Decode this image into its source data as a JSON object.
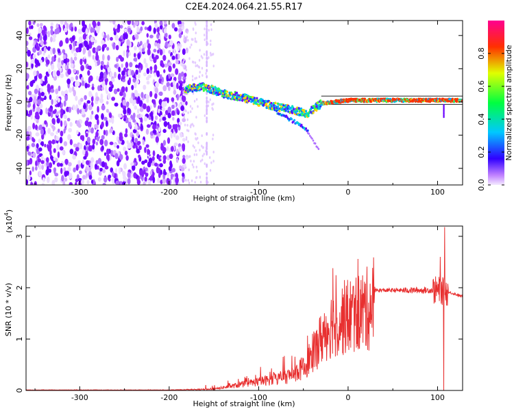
{
  "title": "C2E4.2024.064.21.55.R17",
  "chart_data": [
    {
      "type": "heatmap",
      "xlabel": "Height of straight line (km)",
      "ylabel": "Frequency (Hz)",
      "xlim": [
        -360,
        128
      ],
      "ylim": [
        -50,
        49
      ],
      "x_ticks": [
        -300,
        -200,
        -100,
        0,
        100
      ],
      "y_ticks": [
        -40,
        -20,
        0,
        20,
        40
      ],
      "colorbar": {
        "label": "Normalized spectral amplitude",
        "range": [
          0,
          1
        ],
        "ticks": [
          0.0,
          0.2,
          0.4,
          0.6,
          0.8
        ],
        "colormap": "rainbow"
      },
      "noise_region": {
        "x_range": [
          -360,
          -180
        ],
        "isolated_column_x": -158
      },
      "signal_trace": [
        {
          "x": -180,
          "y": 8
        },
        {
          "x": -160,
          "y": 9
        },
        {
          "x": -140,
          "y": 5
        },
        {
          "x": -120,
          "y": 3
        },
        {
          "x": -100,
          "y": 0
        },
        {
          "x": -80,
          "y": -3
        },
        {
          "x": -60,
          "y": -5
        },
        {
          "x": -45,
          "y": -7
        },
        {
          "x": -30,
          "y": -1
        },
        {
          "x": 0,
          "y": 1
        },
        {
          "x": 50,
          "y": 1
        },
        {
          "x": 100,
          "y": 1
        },
        {
          "x": 128,
          "y": 1
        }
      ],
      "branch_trace": [
        {
          "x": -80,
          "y": -6
        },
        {
          "x": -60,
          "y": -12
        },
        {
          "x": -45,
          "y": -17
        }
      ],
      "faint_branch_trace": [
        {
          "x": -45,
          "y": -18
        },
        {
          "x": -38,
          "y": -24
        },
        {
          "x": -32,
          "y": -30
        }
      ]
    },
    {
      "type": "line",
      "xlabel": "Height of straight line (km)",
      "ylabel": "SNR (10 * v/v)",
      "y_scale_label": "(x10",
      "y_scale_exp": "4",
      "y_scale_close": ")",
      "xlim": [
        -360,
        128
      ],
      "ylim": [
        0,
        3.2
      ],
      "x_ticks": [
        -300,
        -200,
        -100,
        0,
        100
      ],
      "y_ticks": [
        0,
        1,
        2,
        3
      ],
      "color": "#e83030",
      "envelope": [
        {
          "x": -360,
          "y": 0.01
        },
        {
          "x": -200,
          "y": 0.01
        },
        {
          "x": -150,
          "y": 0.03
        },
        {
          "x": -130,
          "y": 0.1
        },
        {
          "x": -100,
          "y": 0.2
        },
        {
          "x": -70,
          "y": 0.3
        },
        {
          "x": -50,
          "y": 0.5
        },
        {
          "x": -40,
          "y": 0.8
        },
        {
          "x": -30,
          "y": 1.2
        },
        {
          "x": -20,
          "y": 1.5
        },
        {
          "x": -10,
          "y": 1.6
        },
        {
          "x": 0,
          "y": 1.7
        },
        {
          "x": 20,
          "y": 1.85
        },
        {
          "x": 30,
          "y": 1.95
        },
        {
          "x": 50,
          "y": 1.95
        },
        {
          "x": 80,
          "y": 1.95
        },
        {
          "x": 100,
          "y": 1.95
        },
        {
          "x": 115,
          "y": 1.9
        },
        {
          "x": 128,
          "y": 1.83
        }
      ],
      "spikes": [
        {
          "x": -17,
          "y": 2.38
        },
        {
          "x": -10,
          "y": 1.25
        },
        {
          "x": 12,
          "y": 2.15
        },
        {
          "x": 103,
          "y": 2.6
        },
        {
          "x": 108,
          "y": 3.18
        },
        {
          "x": 107,
          "y": 0.0
        }
      ]
    }
  ]
}
